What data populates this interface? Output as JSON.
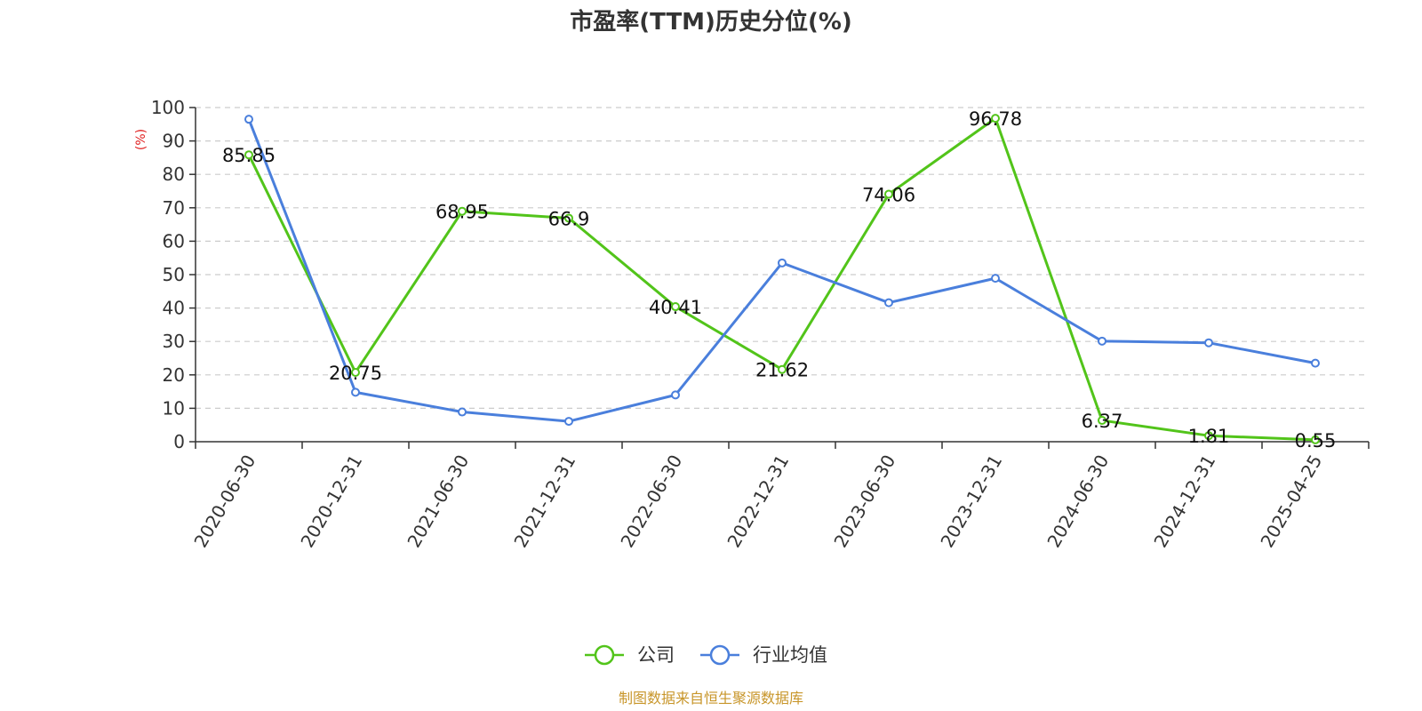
{
  "chart_data": {
    "type": "line",
    "title": "市盈率(TTM)历史分位(%)",
    "ylabel": "(%)",
    "ylim": [
      0,
      100
    ],
    "yticks": [
      0,
      10,
      20,
      30,
      40,
      50,
      60,
      70,
      80,
      90,
      100
    ],
    "grid": true,
    "legend_position": "bottom-center",
    "categories": [
      "2020-06-30",
      "2020-12-31",
      "2021-06-30",
      "2021-12-31",
      "2022-06-30",
      "2022-12-31",
      "2023-06-30",
      "2023-12-31",
      "2024-06-30",
      "2024-12-31",
      "2025-04-25"
    ],
    "series": [
      {
        "name": "公司",
        "color": "#52c41a",
        "values": [
          85.85,
          20.75,
          68.95,
          66.9,
          40.41,
          21.62,
          74.06,
          96.78,
          6.37,
          1.81,
          0.55
        ],
        "labels": [
          "85.85",
          "20.75",
          "68.95",
          "66.9",
          "40.41",
          "21.62",
          "74.06",
          "96.78",
          "6.37",
          "1.81",
          "0.55"
        ]
      },
      {
        "name": "行业均值",
        "color": "#4a7fdc",
        "values": [
          96.5,
          14.8,
          8.9,
          6.1,
          14.0,
          53.5,
          41.6,
          48.9,
          30.1,
          29.6,
          23.5
        ]
      }
    ]
  },
  "source_text": "制图数据来自恒生聚源数据库",
  "source_color": "#c8962a",
  "ylabel_color": "#e02020"
}
